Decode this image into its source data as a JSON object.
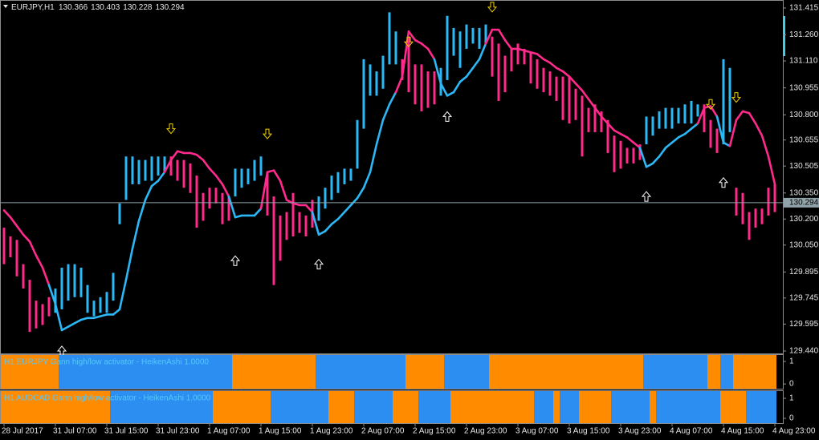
{
  "chart_data": [
    {
      "type": "candlestick",
      "title": "EURJPY,H1",
      "ohlc": [
        130.366,
        130.403,
        130.228,
        130.294
      ],
      "up_color": "#2cb8f6",
      "down_color": "#ff2a8c",
      "price_line_color": "#8fa3a8",
      "ylim": [
        129.426,
        131.461
      ],
      "yticks": [
        131.415,
        {
          "value": 131.26,
          "label": "131.260"
        },
        {
          "value": 131.11,
          "label": "131.110"
        },
        130.955,
        {
          "value": 130.8,
          "label": "130.800"
        },
        130.655,
        130.505,
        {
          "value": 130.35,
          "label": "130.350"
        },
        {
          "value": 130.2,
          "label": "130.200"
        },
        {
          "value": 130.05,
          "label": "130.050"
        },
        129.895,
        129.745,
        129.595,
        {
          "value": 129.44,
          "label": "129.440"
        }
      ],
      "categories": [
        "28 Jul 2017",
        null,
        null,
        null,
        null,
        null,
        null,
        null,
        "31 Jul 07:00",
        null,
        null,
        null,
        null,
        null,
        null,
        null,
        "31 Jul 15:00",
        null,
        null,
        null,
        null,
        null,
        null,
        null,
        "31 Jul 23:00",
        null,
        null,
        null,
        null,
        null,
        null,
        null,
        "1 Aug 07:00",
        null,
        null,
        null,
        null,
        null,
        null,
        null,
        "1 Aug 15:00",
        null,
        null,
        null,
        null,
        null,
        null,
        null,
        "1 Aug 23:00",
        null,
        null,
        null,
        null,
        null,
        null,
        null,
        "2 Aug 07:00",
        null,
        null,
        null,
        null,
        null,
        null,
        null,
        "2 Aug 15:00",
        null,
        null,
        null,
        null,
        null,
        null,
        null,
        "2 Aug 23:00",
        null,
        null,
        null,
        null,
        null,
        null,
        null,
        "3 Aug 07:00",
        null,
        null,
        null,
        null,
        null,
        null,
        null,
        "3 Aug 15:00",
        null,
        null,
        null,
        null,
        null,
        null,
        null,
        "3 Aug 23:00",
        null,
        null,
        null,
        null,
        null,
        null,
        null,
        "4 Aug 07:00",
        null,
        null,
        null,
        null,
        null,
        null,
        null,
        "4 Aug 15:00",
        null,
        null,
        null,
        null,
        null,
        null,
        null,
        "4 Aug 23:00"
      ],
      "open": [
        130.15,
        130.1,
        130.08,
        129.94,
        129.85,
        129.73,
        129.71,
        129.75,
        129.66,
        129.68,
        129.73,
        129.75,
        129.75,
        129.66,
        129.64,
        129.66,
        129.66,
        129.73,
        130.17,
        130.31,
        130.4,
        130.4,
        130.42,
        130.42,
        130.45,
        130.47,
        130.56,
        130.54,
        130.54,
        130.52,
        130.45,
        130.35,
        130.38,
        130.38,
        130.35,
        130.33,
        130.33,
        130.38,
        130.4,
        130.42,
        130.45,
        130.47,
        130.33,
        130.22,
        130.24,
        130.35,
        130.24,
        130.22,
        130.31,
        130.19,
        130.26,
        130.31,
        130.35,
        130.4,
        130.42,
        130.49,
        130.72,
        130.91,
        130.91,
        130.95,
        131.09,
        131.09,
        131.12,
        131.25,
        131.09,
        131.09,
        131.05,
        131.05,
        130.91,
        131.0,
        131.14,
        131.07,
        131.18,
        131.21,
        131.18,
        131.21,
        131.25,
        131.21,
        131.14,
        131.18,
        131.21,
        131.18,
        131.16,
        131.12,
        131.07,
        131.05,
        131.02,
        131.02,
        131.02,
        130.95,
        130.91,
        130.84,
        130.86,
        130.82,
        130.77,
        130.68,
        130.65,
        130.61,
        130.61,
        130.63,
        130.63,
        130.68,
        130.72,
        130.72,
        130.72,
        130.75,
        130.75,
        130.75,
        130.79,
        130.86,
        130.77,
        130.72,
        130.63,
        130.7,
        130.38,
        130.35,
        130.24,
        130.26,
        130.26,
        130.38,
        130.4
      ],
      "close": [
        129.94,
        129.98,
        129.87,
        129.8,
        129.55,
        129.57,
        129.59,
        129.64,
        129.8,
        129.92,
        129.94,
        129.94,
        129.92,
        129.82,
        129.73,
        129.75,
        129.78,
        129.89,
        130.29,
        130.56,
        130.56,
        130.54,
        130.54,
        130.56,
        130.56,
        130.56,
        130.45,
        130.42,
        130.38,
        130.35,
        130.15,
        130.19,
        130.26,
        130.29,
        130.17,
        130.19,
        130.49,
        130.49,
        130.49,
        130.54,
        130.56,
        130.22,
        129.82,
        129.96,
        130.08,
        130.1,
        130.12,
        130.1,
        130.15,
        130.33,
        130.38,
        130.45,
        130.47,
        130.49,
        130.49,
        130.77,
        131.12,
        131.09,
        131.05,
        131.14,
        131.39,
        131.28,
        131.0,
        130.93,
        130.86,
        130.82,
        130.84,
        130.86,
        131.07,
        131.37,
        131.3,
        131.28,
        131.32,
        131.3,
        131.3,
        131.32,
        131.02,
        130.88,
        130.93,
        131.05,
        131.09,
        131.09,
        130.98,
        130.95,
        130.93,
        130.91,
        130.88,
        130.77,
        130.75,
        130.77,
        130.56,
        130.7,
        130.7,
        130.7,
        130.58,
        130.47,
        130.49,
        130.52,
        130.52,
        130.54,
        130.79,
        130.79,
        130.82,
        130.84,
        130.84,
        130.84,
        130.86,
        130.88,
        130.86,
        130.7,
        130.61,
        130.58,
        131.12,
        131.07,
        130.22,
        130.17,
        130.08,
        130.15,
        130.17,
        130.22,
        130.24
      ],
      "line": [
        130.25,
        130.21,
        130.16,
        130.11,
        130.07,
        129.99,
        129.92,
        129.82,
        129.71,
        129.56,
        129.58,
        129.6,
        129.62,
        129.63,
        129.63,
        129.64,
        129.65,
        129.65,
        129.68,
        129.85,
        130.03,
        130.19,
        130.31,
        130.39,
        130.42,
        130.47,
        130.54,
        130.59,
        130.58,
        130.58,
        130.57,
        130.54,
        130.49,
        130.45,
        130.4,
        130.33,
        130.21,
        130.22,
        130.22,
        130.22,
        130.26,
        130.47,
        130.48,
        130.42,
        130.31,
        130.29,
        130.28,
        130.28,
        130.24,
        130.11,
        130.13,
        130.17,
        130.2,
        130.24,
        130.28,
        130.32,
        130.38,
        130.47,
        130.63,
        130.77,
        130.86,
        130.93,
        131.02,
        131.28,
        131.23,
        131.21,
        131.18,
        131.12,
        130.98,
        130.91,
        130.93,
        130.99,
        131.02,
        131.07,
        131.12,
        131.21,
        131.29,
        131.29,
        131.23,
        131.18,
        131.18,
        131.17,
        131.16,
        131.15,
        131.12,
        131.1,
        131.07,
        131.05,
        131.02,
        130.98,
        130.94,
        130.89,
        130.84,
        130.79,
        130.75,
        130.71,
        130.69,
        130.67,
        130.64,
        130.61,
        130.5,
        130.52,
        130.56,
        130.61,
        130.64,
        130.67,
        130.69,
        130.72,
        130.75,
        130.84,
        130.85,
        130.79,
        130.64,
        130.62,
        130.77,
        130.82,
        130.81,
        130.75,
        130.68,
        130.56,
        130.4
      ],
      "up_arrows": {
        "color": "#ffffff",
        "index": [
          9,
          36,
          49,
          69,
          100,
          112
        ],
        "values": [
          129.44,
          129.96,
          129.94,
          130.79,
          130.33,
          130.41
        ]
      },
      "down_arrows": {
        "color": "#f2d000",
        "index": [
          26,
          41,
          63,
          76,
          110,
          114
        ],
        "values": [
          130.72,
          130.69,
          131.22,
          131.42,
          130.86,
          130.9
        ]
      }
    },
    {
      "type": "band",
      "title": "H1 EURJPY Gann high/low activator - HeikenAshi 1.0000",
      "ylim": [
        -0.21,
        1.32
      ],
      "yticks": [
        0,
        1
      ],
      "segments": [
        {
          "from": 0,
          "to": 8,
          "color": "#ff8c00"
        },
        {
          "from": 9,
          "to": 35,
          "color": "#2b8ef0"
        },
        {
          "from": 36,
          "to": 48,
          "color": "#ff8c00"
        },
        {
          "from": 49,
          "to": 62,
          "color": "#2b8ef0"
        },
        {
          "from": 63,
          "to": 68,
          "color": "#ff8c00"
        },
        {
          "from": 69,
          "to": 75,
          "color": "#2b8ef0"
        },
        {
          "from": 76,
          "to": 99,
          "color": "#ff8c00"
        },
        {
          "from": 100,
          "to": 109,
          "color": "#2b8ef0"
        },
        {
          "from": 110,
          "to": 111,
          "color": "#ff8c00"
        },
        {
          "from": 112,
          "to": 113,
          "color": "#2b8ef0"
        },
        {
          "from": 114,
          "to": 120,
          "color": "#ff8c00"
        }
      ]
    },
    {
      "type": "band",
      "title": "H1 AUDCAD Gann high/low activator - HeikenAshi 1.0000",
      "ylim": [
        -0.24,
        1.4
      ],
      "yticks": [
        0,
        1
      ],
      "segments": [
        {
          "from": 0,
          "to": 10,
          "color": "#ff8c00"
        },
        {
          "from": 11,
          "to": 16,
          "color": "#ff8c00"
        },
        {
          "from": 17,
          "to": 32,
          "color": "#2b8ef0"
        },
        {
          "from": 33,
          "to": 41,
          "color": "#ff8c00"
        },
        {
          "from": 42,
          "to": 50,
          "color": "#2b8ef0"
        },
        {
          "from": 51,
          "to": 54,
          "color": "#ff8c00"
        },
        {
          "from": 55,
          "to": 60,
          "color": "#2b8ef0"
        },
        {
          "from": 61,
          "to": 64,
          "color": "#ff8c00"
        },
        {
          "from": 65,
          "to": 69,
          "color": "#2b8ef0"
        },
        {
          "from": 70,
          "to": 82,
          "color": "#ff8c00"
        },
        {
          "from": 83,
          "to": 85,
          "color": "#2b8ef0"
        },
        {
          "from": 86,
          "to": 86,
          "color": "#ff8c00"
        },
        {
          "from": 87,
          "to": 89,
          "color": "#2b8ef0"
        },
        {
          "from": 90,
          "to": 94,
          "color": "#ff8c00"
        },
        {
          "from": 95,
          "to": 100,
          "color": "#2b8ef0"
        },
        {
          "from": 101,
          "to": 101,
          "color": "#ff8c00"
        },
        {
          "from": 102,
          "to": 111,
          "color": "#2b8ef0"
        },
        {
          "from": 112,
          "to": 115,
          "color": "#ff8c00"
        },
        {
          "from": 116,
          "to": 120,
          "color": "#2b8ef0"
        }
      ]
    }
  ]
}
